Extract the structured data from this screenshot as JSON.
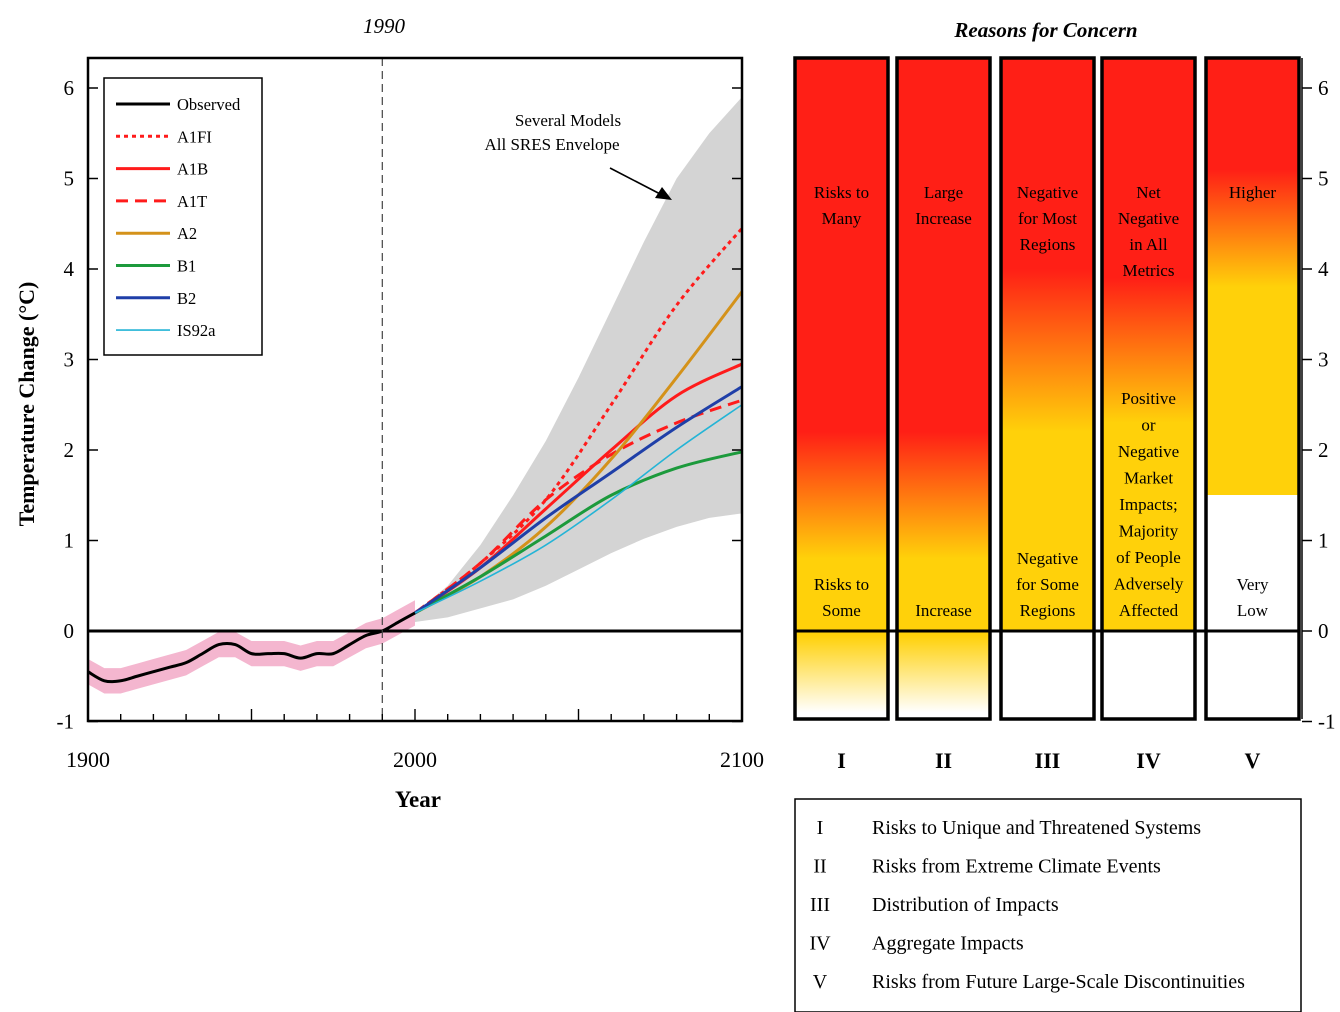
{
  "chart_data": [
    {
      "type": "line",
      "title": "1990",
      "xlabel": "Year",
      "ylabel": "Temperature Change (°C)",
      "xlim": [
        1900,
        2100
      ],
      "ylim": [
        -1,
        6.3
      ],
      "xticks": [
        "1900",
        "2000",
        "2100"
      ],
      "yticks": [
        "-1",
        "0",
        "1",
        "2",
        "3",
        "4",
        "5",
        "6"
      ],
      "reference_line_year": 1990,
      "legend_position": "top-left",
      "annotation": "Several Models All SRES Envelope",
      "annotation_line1": "Several Models",
      "annotation_line2": "All SRES Envelope",
      "envelope": {
        "x": [
          1990,
          2000,
          2010,
          2020,
          2030,
          2040,
          2050,
          2060,
          2070,
          2080,
          2090,
          2100
        ],
        "upper": [
          0.02,
          0.2,
          0.5,
          0.95,
          1.5,
          2.1,
          2.8,
          3.55,
          4.3,
          5.0,
          5.5,
          5.9
        ],
        "lower": [
          0.02,
          0.1,
          0.15,
          0.25,
          0.35,
          0.5,
          0.68,
          0.86,
          1.02,
          1.15,
          1.25,
          1.3
        ]
      },
      "observed": {
        "name": "Observed",
        "color": "#000000",
        "style": "solid",
        "x": [
          1900,
          1905,
          1910,
          1915,
          1920,
          1925,
          1930,
          1935,
          1940,
          1945,
          1950,
          1955,
          1960,
          1965,
          1970,
          1975,
          1980,
          1985,
          1990,
          1995,
          2000
        ],
        "y": [
          -0.45,
          -0.55,
          -0.55,
          -0.5,
          -0.45,
          -0.4,
          -0.35,
          -0.25,
          -0.15,
          -0.15,
          -0.25,
          -0.25,
          -0.25,
          -0.3,
          -0.25,
          -0.25,
          -0.15,
          -0.05,
          0.0,
          0.1,
          0.2
        ],
        "band_color": "#f4b6cf"
      },
      "series": [
        {
          "name": "A1FI",
          "color": "#ff1b1b",
          "style": "dotted",
          "x": [
            2000,
            2020,
            2040,
            2060,
            2080,
            2100
          ],
          "y": [
            0.2,
            0.75,
            1.45,
            2.5,
            3.6,
            4.45
          ]
        },
        {
          "name": "A1B",
          "color": "#ff1b1b",
          "style": "solid",
          "x": [
            2000,
            2020,
            2040,
            2060,
            2080,
            2100
          ],
          "y": [
            0.2,
            0.7,
            1.35,
            2.0,
            2.6,
            2.95
          ]
        },
        {
          "name": "A1T",
          "color": "#ff1b1b",
          "style": "dashed",
          "x": [
            2000,
            2020,
            2040,
            2060,
            2080,
            2100
          ],
          "y": [
            0.2,
            0.75,
            1.45,
            1.95,
            2.3,
            2.55
          ]
        },
        {
          "name": "A2",
          "color": "#d4921a",
          "style": "solid",
          "x": [
            2000,
            2020,
            2040,
            2060,
            2080,
            2100
          ],
          "y": [
            0.2,
            0.6,
            1.15,
            1.9,
            2.8,
            3.75
          ]
        },
        {
          "name": "B1",
          "color": "#1c9a3c",
          "style": "solid",
          "x": [
            2000,
            2020,
            2040,
            2060,
            2080,
            2100
          ],
          "y": [
            0.2,
            0.6,
            1.05,
            1.5,
            1.8,
            1.98
          ]
        },
        {
          "name": "B2",
          "color": "#1f3fa8",
          "style": "solid",
          "x": [
            2000,
            2020,
            2040,
            2060,
            2080,
            2100
          ],
          "y": [
            0.2,
            0.7,
            1.25,
            1.75,
            2.25,
            2.7
          ]
        },
        {
          "name": "IS92a",
          "color": "#24b4d6",
          "style": "solid",
          "x": [
            2000,
            2020,
            2040,
            2060,
            2080,
            2100
          ],
          "y": [
            0.2,
            0.55,
            0.95,
            1.45,
            2.0,
            2.5
          ]
        }
      ]
    },
    {
      "type": "heatmap",
      "title": "Reasons for Concern",
      "ylim": [
        -1,
        6.3
      ],
      "yticks": [
        "-1",
        "0",
        "1",
        "2",
        "3",
        "4",
        "5",
        "6"
      ],
      "colors": {
        "high": "#ff1f16",
        "mid": "#ffd10a",
        "low": "#ffffff"
      },
      "columns": [
        {
          "numeral": "I",
          "top_label": [
            "Risks to",
            "Many"
          ],
          "bottom_label": [
            "Risks to",
            "Some"
          ],
          "gradient": {
            "white_end": -0.9,
            "yellow_start": -0.05,
            "yellow_end": 0.8,
            "red_start": 2.2
          }
        },
        {
          "numeral": "II",
          "top_label": [
            "Large",
            "Increase"
          ],
          "bottom_label": [
            "Increase"
          ],
          "gradient": {
            "white_end": -0.9,
            "yellow_start": -0.05,
            "yellow_end": 0.8,
            "red_start": 2.2
          }
        },
        {
          "numeral": "III",
          "top_label": [
            "Negative",
            "for Most",
            "Regions"
          ],
          "bottom_label": [
            "Negative",
            "for Some",
            "Regions"
          ],
          "gradient": {
            "white_end": 0.0,
            "yellow_start": 0.0,
            "yellow_end": 2.2,
            "red_start": 4.0
          }
        },
        {
          "numeral": "IV",
          "top_label": [
            "Net",
            "Negative",
            "in All",
            "Metrics"
          ],
          "bottom_label": [
            "Positive",
            "or",
            "Negative",
            "Market",
            "Impacts;",
            "Majority",
            "of People",
            "Adversely",
            "Affected"
          ],
          "gradient": {
            "white_end": 0.0,
            "yellow_start": 0.0,
            "yellow_end": 2.3,
            "red_start": 3.9
          }
        },
        {
          "numeral": "V",
          "top_label": [
            "Higher"
          ],
          "bottom_label": [
            "Very",
            "Low"
          ],
          "gradient": {
            "white_end": 1.5,
            "yellow_start": 1.5,
            "yellow_end": 3.8,
            "red_start": 5.1
          }
        }
      ],
      "key": [
        {
          "numeral": "I",
          "text": "Risks to Unique and Threatened Systems"
        },
        {
          "numeral": "II",
          "text": "Risks from Extreme Climate Events"
        },
        {
          "numeral": "III",
          "text": "Distribution of Impacts"
        },
        {
          "numeral": "IV",
          "text": "Aggregate Impacts"
        },
        {
          "numeral": "V",
          "text": "Risks from Future Large-Scale Discontinuities"
        }
      ]
    }
  ]
}
